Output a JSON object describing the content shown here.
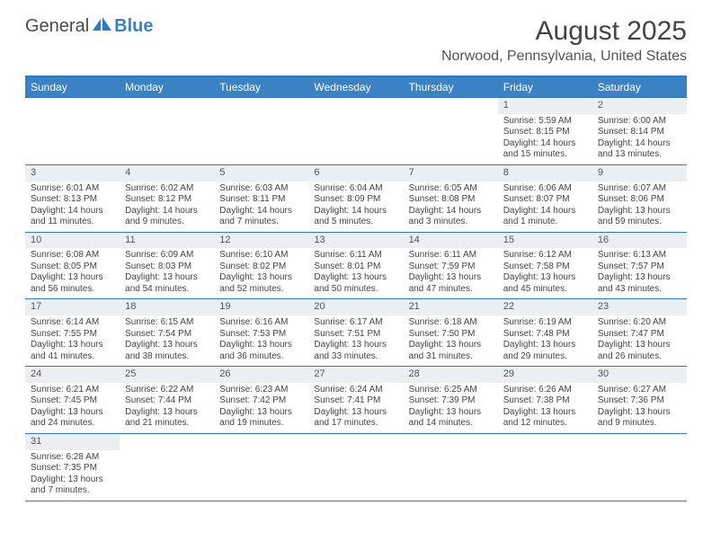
{
  "logo": {
    "word1": "General",
    "word2": "Blue"
  },
  "title": "August 2025",
  "location": "Norwood, Pennsylvania, United States",
  "colors": {
    "header_bg": "#3b82c4",
    "rule": "#2f7ac0",
    "daynum_bg": "#eceff1",
    "text": "#444444"
  },
  "day_names": [
    "Sunday",
    "Monday",
    "Tuesday",
    "Wednesday",
    "Thursday",
    "Friday",
    "Saturday"
  ],
  "weeks": [
    [
      {
        "n": "",
        "lines": []
      },
      {
        "n": "",
        "lines": []
      },
      {
        "n": "",
        "lines": []
      },
      {
        "n": "",
        "lines": []
      },
      {
        "n": "",
        "lines": []
      },
      {
        "n": "1",
        "lines": [
          "Sunrise: 5:59 AM",
          "Sunset: 8:15 PM",
          "Daylight: 14 hours",
          "and 15 minutes."
        ]
      },
      {
        "n": "2",
        "lines": [
          "Sunrise: 6:00 AM",
          "Sunset: 8:14 PM",
          "Daylight: 14 hours",
          "and 13 minutes."
        ]
      }
    ],
    [
      {
        "n": "3",
        "lines": [
          "Sunrise: 6:01 AM",
          "Sunset: 8:13 PM",
          "Daylight: 14 hours",
          "and 11 minutes."
        ]
      },
      {
        "n": "4",
        "lines": [
          "Sunrise: 6:02 AM",
          "Sunset: 8:12 PM",
          "Daylight: 14 hours",
          "and 9 minutes."
        ]
      },
      {
        "n": "5",
        "lines": [
          "Sunrise: 6:03 AM",
          "Sunset: 8:11 PM",
          "Daylight: 14 hours",
          "and 7 minutes."
        ]
      },
      {
        "n": "6",
        "lines": [
          "Sunrise: 6:04 AM",
          "Sunset: 8:09 PM",
          "Daylight: 14 hours",
          "and 5 minutes."
        ]
      },
      {
        "n": "7",
        "lines": [
          "Sunrise: 6:05 AM",
          "Sunset: 8:08 PM",
          "Daylight: 14 hours",
          "and 3 minutes."
        ]
      },
      {
        "n": "8",
        "lines": [
          "Sunrise: 6:06 AM",
          "Sunset: 8:07 PM",
          "Daylight: 14 hours",
          "and 1 minute."
        ]
      },
      {
        "n": "9",
        "lines": [
          "Sunrise: 6:07 AM",
          "Sunset: 8:06 PM",
          "Daylight: 13 hours",
          "and 59 minutes."
        ]
      }
    ],
    [
      {
        "n": "10",
        "lines": [
          "Sunrise: 6:08 AM",
          "Sunset: 8:05 PM",
          "Daylight: 13 hours",
          "and 56 minutes."
        ]
      },
      {
        "n": "11",
        "lines": [
          "Sunrise: 6:09 AM",
          "Sunset: 8:03 PM",
          "Daylight: 13 hours",
          "and 54 minutes."
        ]
      },
      {
        "n": "12",
        "lines": [
          "Sunrise: 6:10 AM",
          "Sunset: 8:02 PM",
          "Daylight: 13 hours",
          "and 52 minutes."
        ]
      },
      {
        "n": "13",
        "lines": [
          "Sunrise: 6:11 AM",
          "Sunset: 8:01 PM",
          "Daylight: 13 hours",
          "and 50 minutes."
        ]
      },
      {
        "n": "14",
        "lines": [
          "Sunrise: 6:11 AM",
          "Sunset: 7:59 PM",
          "Daylight: 13 hours",
          "and 47 minutes."
        ]
      },
      {
        "n": "15",
        "lines": [
          "Sunrise: 6:12 AM",
          "Sunset: 7:58 PM",
          "Daylight: 13 hours",
          "and 45 minutes."
        ]
      },
      {
        "n": "16",
        "lines": [
          "Sunrise: 6:13 AM",
          "Sunset: 7:57 PM",
          "Daylight: 13 hours",
          "and 43 minutes."
        ]
      }
    ],
    [
      {
        "n": "17",
        "lines": [
          "Sunrise: 6:14 AM",
          "Sunset: 7:55 PM",
          "Daylight: 13 hours",
          "and 41 minutes."
        ]
      },
      {
        "n": "18",
        "lines": [
          "Sunrise: 6:15 AM",
          "Sunset: 7:54 PM",
          "Daylight: 13 hours",
          "and 38 minutes."
        ]
      },
      {
        "n": "19",
        "lines": [
          "Sunrise: 6:16 AM",
          "Sunset: 7:53 PM",
          "Daylight: 13 hours",
          "and 36 minutes."
        ]
      },
      {
        "n": "20",
        "lines": [
          "Sunrise: 6:17 AM",
          "Sunset: 7:51 PM",
          "Daylight: 13 hours",
          "and 33 minutes."
        ]
      },
      {
        "n": "21",
        "lines": [
          "Sunrise: 6:18 AM",
          "Sunset: 7:50 PM",
          "Daylight: 13 hours",
          "and 31 minutes."
        ]
      },
      {
        "n": "22",
        "lines": [
          "Sunrise: 6:19 AM",
          "Sunset: 7:48 PM",
          "Daylight: 13 hours",
          "and 29 minutes."
        ]
      },
      {
        "n": "23",
        "lines": [
          "Sunrise: 6:20 AM",
          "Sunset: 7:47 PM",
          "Daylight: 13 hours",
          "and 26 minutes."
        ]
      }
    ],
    [
      {
        "n": "24",
        "lines": [
          "Sunrise: 6:21 AM",
          "Sunset: 7:45 PM",
          "Daylight: 13 hours",
          "and 24 minutes."
        ]
      },
      {
        "n": "25",
        "lines": [
          "Sunrise: 6:22 AM",
          "Sunset: 7:44 PM",
          "Daylight: 13 hours",
          "and 21 minutes."
        ]
      },
      {
        "n": "26",
        "lines": [
          "Sunrise: 6:23 AM",
          "Sunset: 7:42 PM",
          "Daylight: 13 hours",
          "and 19 minutes."
        ]
      },
      {
        "n": "27",
        "lines": [
          "Sunrise: 6:24 AM",
          "Sunset: 7:41 PM",
          "Daylight: 13 hours",
          "and 17 minutes."
        ]
      },
      {
        "n": "28",
        "lines": [
          "Sunrise: 6:25 AM",
          "Sunset: 7:39 PM",
          "Daylight: 13 hours",
          "and 14 minutes."
        ]
      },
      {
        "n": "29",
        "lines": [
          "Sunrise: 6:26 AM",
          "Sunset: 7:38 PM",
          "Daylight: 13 hours",
          "and 12 minutes."
        ]
      },
      {
        "n": "30",
        "lines": [
          "Sunrise: 6:27 AM",
          "Sunset: 7:36 PM",
          "Daylight: 13 hours",
          "and 9 minutes."
        ]
      }
    ],
    [
      {
        "n": "31",
        "lines": [
          "Sunrise: 6:28 AM",
          "Sunset: 7:35 PM",
          "Daylight: 13 hours",
          "and 7 minutes."
        ]
      },
      {
        "n": "",
        "lines": []
      },
      {
        "n": "",
        "lines": []
      },
      {
        "n": "",
        "lines": []
      },
      {
        "n": "",
        "lines": []
      },
      {
        "n": "",
        "lines": []
      },
      {
        "n": "",
        "lines": []
      }
    ]
  ]
}
